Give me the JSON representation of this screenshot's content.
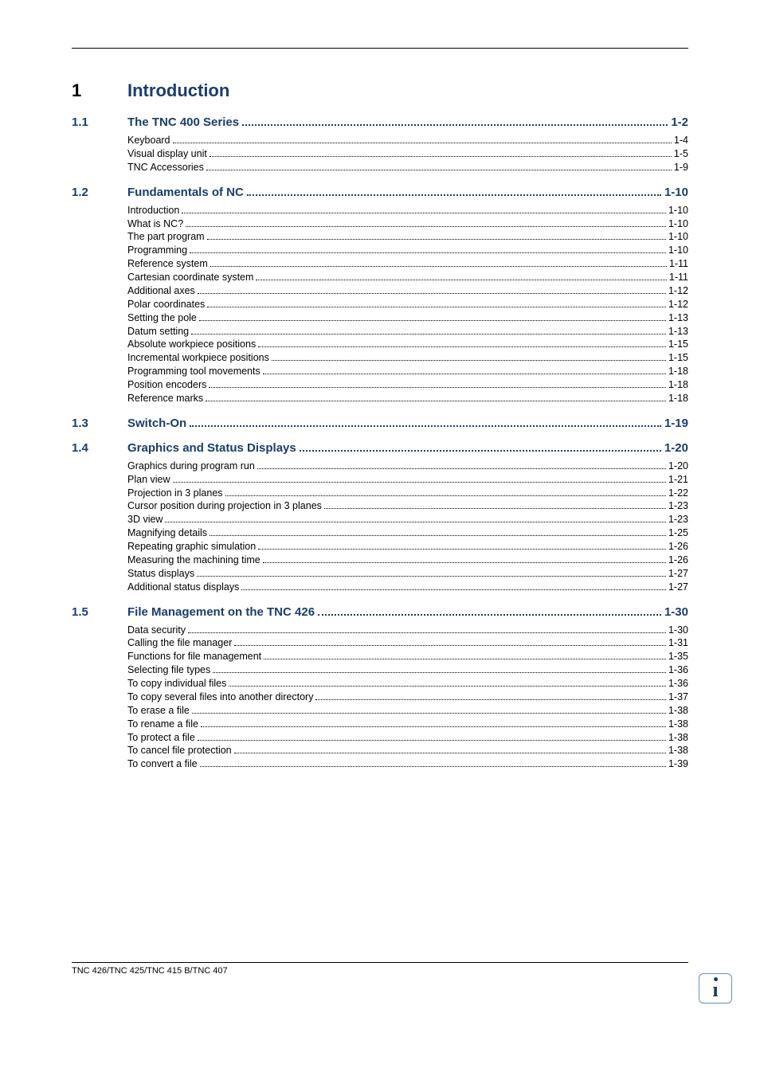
{
  "chapter": {
    "num": "1",
    "title": "Introduction"
  },
  "sections": [
    {
      "num": "1.1",
      "title": "The TNC 400 Series",
      "page": "1-2",
      "entries": [
        {
          "t": "Keyboard",
          "p": "1-4"
        },
        {
          "t": "Visual display unit",
          "p": "1-5"
        },
        {
          "t": "TNC Accessories",
          "p": "1-9"
        }
      ]
    },
    {
      "num": "1.2",
      "title": "Fundamentals of NC",
      "page": "1-10",
      "entries": [
        {
          "t": "Introduction",
          "p": "1-10"
        },
        {
          "t": "What is NC?",
          "p": "1-10"
        },
        {
          "t": "The part program",
          "p": "1-10"
        },
        {
          "t": "Programming",
          "p": "1-10"
        },
        {
          "t": "Reference system",
          "p": "1-11"
        },
        {
          "t": "Cartesian coordinate system",
          "p": "1-11"
        },
        {
          "t": "Additional axes",
          "p": "1-12"
        },
        {
          "t": "Polar coordinates",
          "p": "1-12"
        },
        {
          "t": "Setting the pole",
          "p": "1-13"
        },
        {
          "t": "Datum setting",
          "p": "1-13"
        },
        {
          "t": "Absolute workpiece positions",
          "p": "1-15"
        },
        {
          "t": "Incremental workpiece positions",
          "p": "1-15"
        },
        {
          "t": "Programming tool movements",
          "p": "1-18"
        },
        {
          "t": "Position encoders",
          "p": "1-18"
        },
        {
          "t": "Reference marks",
          "p": "1-18"
        }
      ]
    },
    {
      "num": "1.3",
      "title": "Switch-On",
      "page": "1-19",
      "entries": []
    },
    {
      "num": "1.4",
      "title": "Graphics and Status Displays",
      "page": "1-20",
      "entries": [
        {
          "t": "Graphics during program run",
          "p": "1-20"
        },
        {
          "t": "Plan view",
          "p": "1-21"
        },
        {
          "t": "Projection in 3 planes",
          "p": "1-22"
        },
        {
          "t": "Cursor position during projection in 3 planes",
          "p": "1-23"
        },
        {
          "t": "3D view",
          "p": "1-23"
        },
        {
          "t": "Magnifying details",
          "p": "1-25"
        },
        {
          "t": "Repeating graphic simulation",
          "p": "1-26"
        },
        {
          "t": "Measuring the machining time",
          "p": "1-26"
        },
        {
          "t": "Status displays",
          "p": "1-27"
        },
        {
          "t": "Additional status displays",
          "p": "1-27"
        }
      ]
    },
    {
      "num": "1.5",
      "title": "File Management on the TNC 426",
      "page": "1-30",
      "entries": [
        {
          "t": "Data security",
          "p": "1-30"
        },
        {
          "t": "Calling the file manager",
          "p": "1-31"
        },
        {
          "t": "Functions for file management",
          "p": "1-35"
        },
        {
          "t": "Selecting file types",
          "p": "1-36"
        },
        {
          "t": "To copy individual files",
          "p": "1-36"
        },
        {
          "t": "To copy several files into another directory",
          "p": "1-37"
        },
        {
          "t": "To erase a file",
          "p": "1-38"
        },
        {
          "t": "To rename a file",
          "p": "1-38"
        },
        {
          "t": "To protect a file",
          "p": "1-38"
        },
        {
          "t": "To cancel file protection",
          "p": "1-38"
        },
        {
          "t": "To convert a file",
          "p": "1-39"
        }
      ]
    }
  ],
  "footer": "TNC 426/TNC 425/TNC 415 B/TNC 407",
  "colors": {
    "section_color": "#1a3d6d",
    "text_color": "#000000",
    "background": "#ffffff"
  },
  "typography": {
    "chapter_fontsize": 22,
    "section_fontsize": 15,
    "entry_fontsize": 12.5,
    "footer_fontsize": 11
  }
}
